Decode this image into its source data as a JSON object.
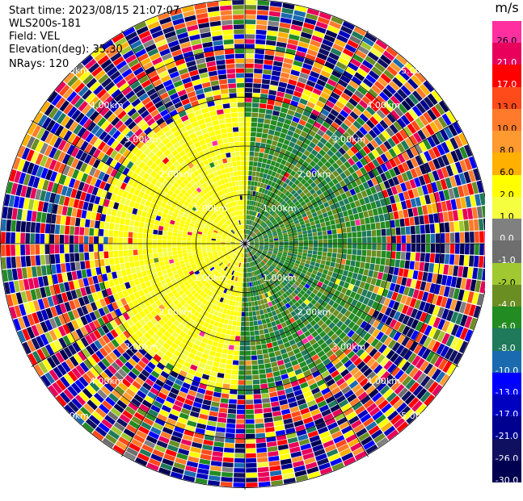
{
  "header": {
    "start_time": "Start time: 2023/08/15 21:07:07",
    "instrument": "WLS200s-181",
    "field": "Field: VEL",
    "elevation": "Elevation(deg): 35.30",
    "nrays": "NRays: 120"
  },
  "colorbar": {
    "title": "m/s",
    "ticks": [
      "26.0",
      "21.0",
      "17.0",
      "13.0",
      "10.0",
      "8.0",
      "6.0",
      "2.0",
      "1.0",
      "0.0",
      "-1.0",
      "-2.0",
      "-4.0",
      "-6.0",
      "-8.0",
      "-10.0",
      "-13.0",
      "-17.0",
      "-21.0",
      "-26.0",
      "-30.0"
    ],
    "colors": [
      "#ff2fa0",
      "#e8005a",
      "#ff0000",
      "#ff4a1a",
      "#ff7a2a",
      "#ff9a30",
      "#ffb000",
      "#ffff00",
      "#f5ff40",
      "#808080",
      "#6e6e6e",
      "#a0c830",
      "#6b8e23",
      "#228b22",
      "#1e7a5a",
      "#1a6ab0",
      "#0000ff",
      "#0000c0",
      "#000090",
      "#101060",
      "#000050"
    ]
  },
  "chart_data": {
    "type": "heatmap",
    "projection": "polar PPI",
    "field": "VEL",
    "units": "m/s",
    "nrays": 120,
    "elevation_deg": 35.3,
    "range_rings_km": [
      1.0,
      2.0,
      3.0,
      4.0,
      5.0
    ],
    "range_ring_labels": [
      "1.00km",
      "2.00km",
      "3.00km",
      "4.00km",
      "5.00km"
    ],
    "value_range": [
      -30.0,
      26.0
    ],
    "pattern": {
      "inner_west_sector_mean": 3.0,
      "inner_east_sector_mean": -5.0,
      "inner_radius_km": 2.6,
      "outer_region": "noise"
    }
  }
}
